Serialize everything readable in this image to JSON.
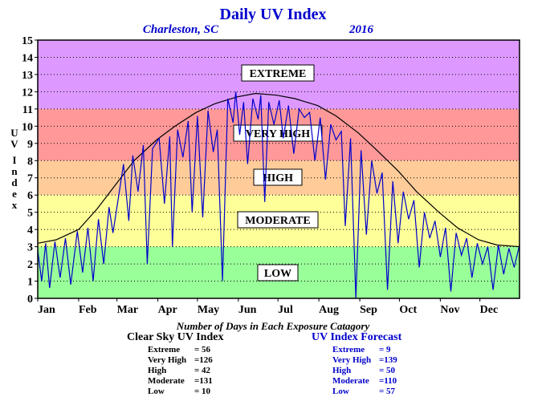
{
  "chart_data": {
    "type": "line",
    "title": "Daily UV Index",
    "location": "Charleston, SC",
    "year": "2016",
    "ylabel": "UV Index",
    "ylim": [
      0,
      15
    ],
    "yticks": [
      "0",
      "1",
      "2",
      "3",
      "4",
      "5",
      "6",
      "7",
      "8",
      "9",
      "10",
      "11",
      "12",
      "13",
      "14",
      "15"
    ],
    "xticks": [
      "Jan",
      "Feb",
      "Mar",
      "Apr",
      "May",
      "Jun",
      "Jul",
      "Aug",
      "Sep",
      "Oct",
      "Nov",
      "Dec"
    ],
    "xlim_days": [
      1,
      366
    ],
    "grid": true,
    "bands": [
      {
        "label": "LOW",
        "from": 0,
        "to": 3,
        "color": "#99ff99"
      },
      {
        "label": "MODERATE",
        "from": 3,
        "to": 6,
        "color": "#ffff99"
      },
      {
        "label": "HIGH",
        "from": 6,
        "to": 8,
        "color": "#ffcc99"
      },
      {
        "label": "VERY HIGH",
        "from": 8,
        "to": 11,
        "color": "#ff9999"
      },
      {
        "label": "EXTREME",
        "from": 11,
        "to": 15,
        "color": "#dd99ff"
      }
    ],
    "series": [
      {
        "key": "clear_sky",
        "color": "#000000",
        "points": [
          [
            1,
            3.2
          ],
          [
            15,
            3.4
          ],
          [
            32,
            4.0
          ],
          [
            46,
            5.2
          ],
          [
            60,
            6.6
          ],
          [
            74,
            8.0
          ],
          [
            91,
            9.2
          ],
          [
            105,
            10.0
          ],
          [
            121,
            10.8
          ],
          [
            135,
            11.3
          ],
          [
            152,
            11.7
          ],
          [
            166,
            11.9
          ],
          [
            182,
            11.8
          ],
          [
            196,
            11.6
          ],
          [
            213,
            11.2
          ],
          [
            227,
            10.6
          ],
          [
            244,
            9.6
          ],
          [
            258,
            8.6
          ],
          [
            274,
            7.4
          ],
          [
            288,
            6.2
          ],
          [
            305,
            5.0
          ],
          [
            319,
            4.1
          ],
          [
            335,
            3.4
          ],
          [
            349,
            3.1
          ],
          [
            366,
            3.0
          ]
        ]
      },
      {
        "key": "forecast",
        "color": "#0000cc",
        "points": [
          [
            1,
            2.8
          ],
          [
            4,
            1.0
          ],
          [
            7,
            3.2
          ],
          [
            10,
            0.6
          ],
          [
            14,
            3.3
          ],
          [
            18,
            1.2
          ],
          [
            22,
            3.5
          ],
          [
            26,
            0.8
          ],
          [
            31,
            3.9
          ],
          [
            35,
            1.5
          ],
          [
            39,
            4.1
          ],
          [
            43,
            1.0
          ],
          [
            47,
            4.6
          ],
          [
            51,
            2.0
          ],
          [
            55,
            5.3
          ],
          [
            58,
            3.8
          ],
          [
            62,
            5.8
          ],
          [
            66,
            7.8
          ],
          [
            70,
            4.5
          ],
          [
            73,
            8.3
          ],
          [
            77,
            6.2
          ],
          [
            81,
            8.9
          ],
          [
            84,
            2.0
          ],
          [
            88,
            8.7
          ],
          [
            93,
            9.3
          ],
          [
            97,
            5.5
          ],
          [
            101,
            9.4
          ],
          [
            103,
            3.0
          ],
          [
            107,
            9.8
          ],
          [
            111,
            8.2
          ],
          [
            115,
            10.3
          ],
          [
            118,
            5.0
          ],
          [
            122,
            10.6
          ],
          [
            126,
            4.7
          ],
          [
            130,
            10.9
          ],
          [
            134,
            8.5
          ],
          [
            137,
            9.8
          ],
          [
            141,
            1.0
          ],
          [
            145,
            11.6
          ],
          [
            149,
            10.2
          ],
          [
            151,
            12.0
          ],
          [
            154,
            9.5
          ],
          [
            157,
            11.4
          ],
          [
            160,
            7.8
          ],
          [
            164,
            11.6
          ],
          [
            168,
            10.4
          ],
          [
            170,
            11.8
          ],
          [
            173,
            5.6
          ],
          [
            176,
            11.4
          ],
          [
            180,
            10.1
          ],
          [
            184,
            11.5
          ],
          [
            187,
            9.3
          ],
          [
            191,
            11.2
          ],
          [
            195,
            8.4
          ],
          [
            199,
            11.0
          ],
          [
            203,
            10.5
          ],
          [
            207,
            10.8
          ],
          [
            211,
            8.0
          ],
          [
            215,
            10.5
          ],
          [
            219,
            6.9
          ],
          [
            223,
            10.1
          ],
          [
            227,
            9.2
          ],
          [
            231,
            9.7
          ],
          [
            234,
            4.2
          ],
          [
            238,
            9.3
          ],
          [
            242,
            0.0
          ],
          [
            246,
            8.6
          ],
          [
            250,
            3.7
          ],
          [
            254,
            8.0
          ],
          [
            258,
            6.1
          ],
          [
            262,
            7.3
          ],
          [
            266,
            0.5
          ],
          [
            270,
            6.8
          ],
          [
            274,
            3.2
          ],
          [
            278,
            6.2
          ],
          [
            282,
            4.6
          ],
          [
            286,
            5.7
          ],
          [
            290,
            1.8
          ],
          [
            294,
            5.0
          ],
          [
            298,
            3.5
          ],
          [
            302,
            4.5
          ],
          [
            306,
            2.4
          ],
          [
            310,
            4.1
          ],
          [
            314,
            0.4
          ],
          [
            318,
            3.8
          ],
          [
            322,
            2.5
          ],
          [
            326,
            3.5
          ],
          [
            330,
            1.2
          ],
          [
            334,
            3.2
          ],
          [
            338,
            2.0
          ],
          [
            342,
            3.0
          ],
          [
            346,
            0.5
          ],
          [
            350,
            3.1
          ],
          [
            354,
            1.4
          ],
          [
            358,
            2.9
          ],
          [
            362,
            1.8
          ],
          [
            366,
            3.1
          ]
        ]
      }
    ],
    "subtitle": "Number of Days in Each Exposure Catagory",
    "tables": [
      {
        "title": "Clear Sky UV Index",
        "color": "#000000",
        "rows": [
          {
            "label": "Extreme",
            "value": "= 56"
          },
          {
            "label": "Very High",
            "value": "=126"
          },
          {
            "label": "High",
            "value": "= 42"
          },
          {
            "label": "Moderate",
            "value": "=131"
          },
          {
            "label": "Low",
            "value": "= 10"
          }
        ]
      },
      {
        "title": "UV Index Forecast",
        "color": "#0000cc",
        "rows": [
          {
            "label": "Extreme",
            "value": "= 9"
          },
          {
            "label": "Very High",
            "value": "=139"
          },
          {
            "label": "High",
            "value": "= 50"
          },
          {
            "label": "Moderate",
            "value": "=110"
          },
          {
            "label": "Low",
            "value": "= 57"
          }
        ]
      }
    ]
  }
}
